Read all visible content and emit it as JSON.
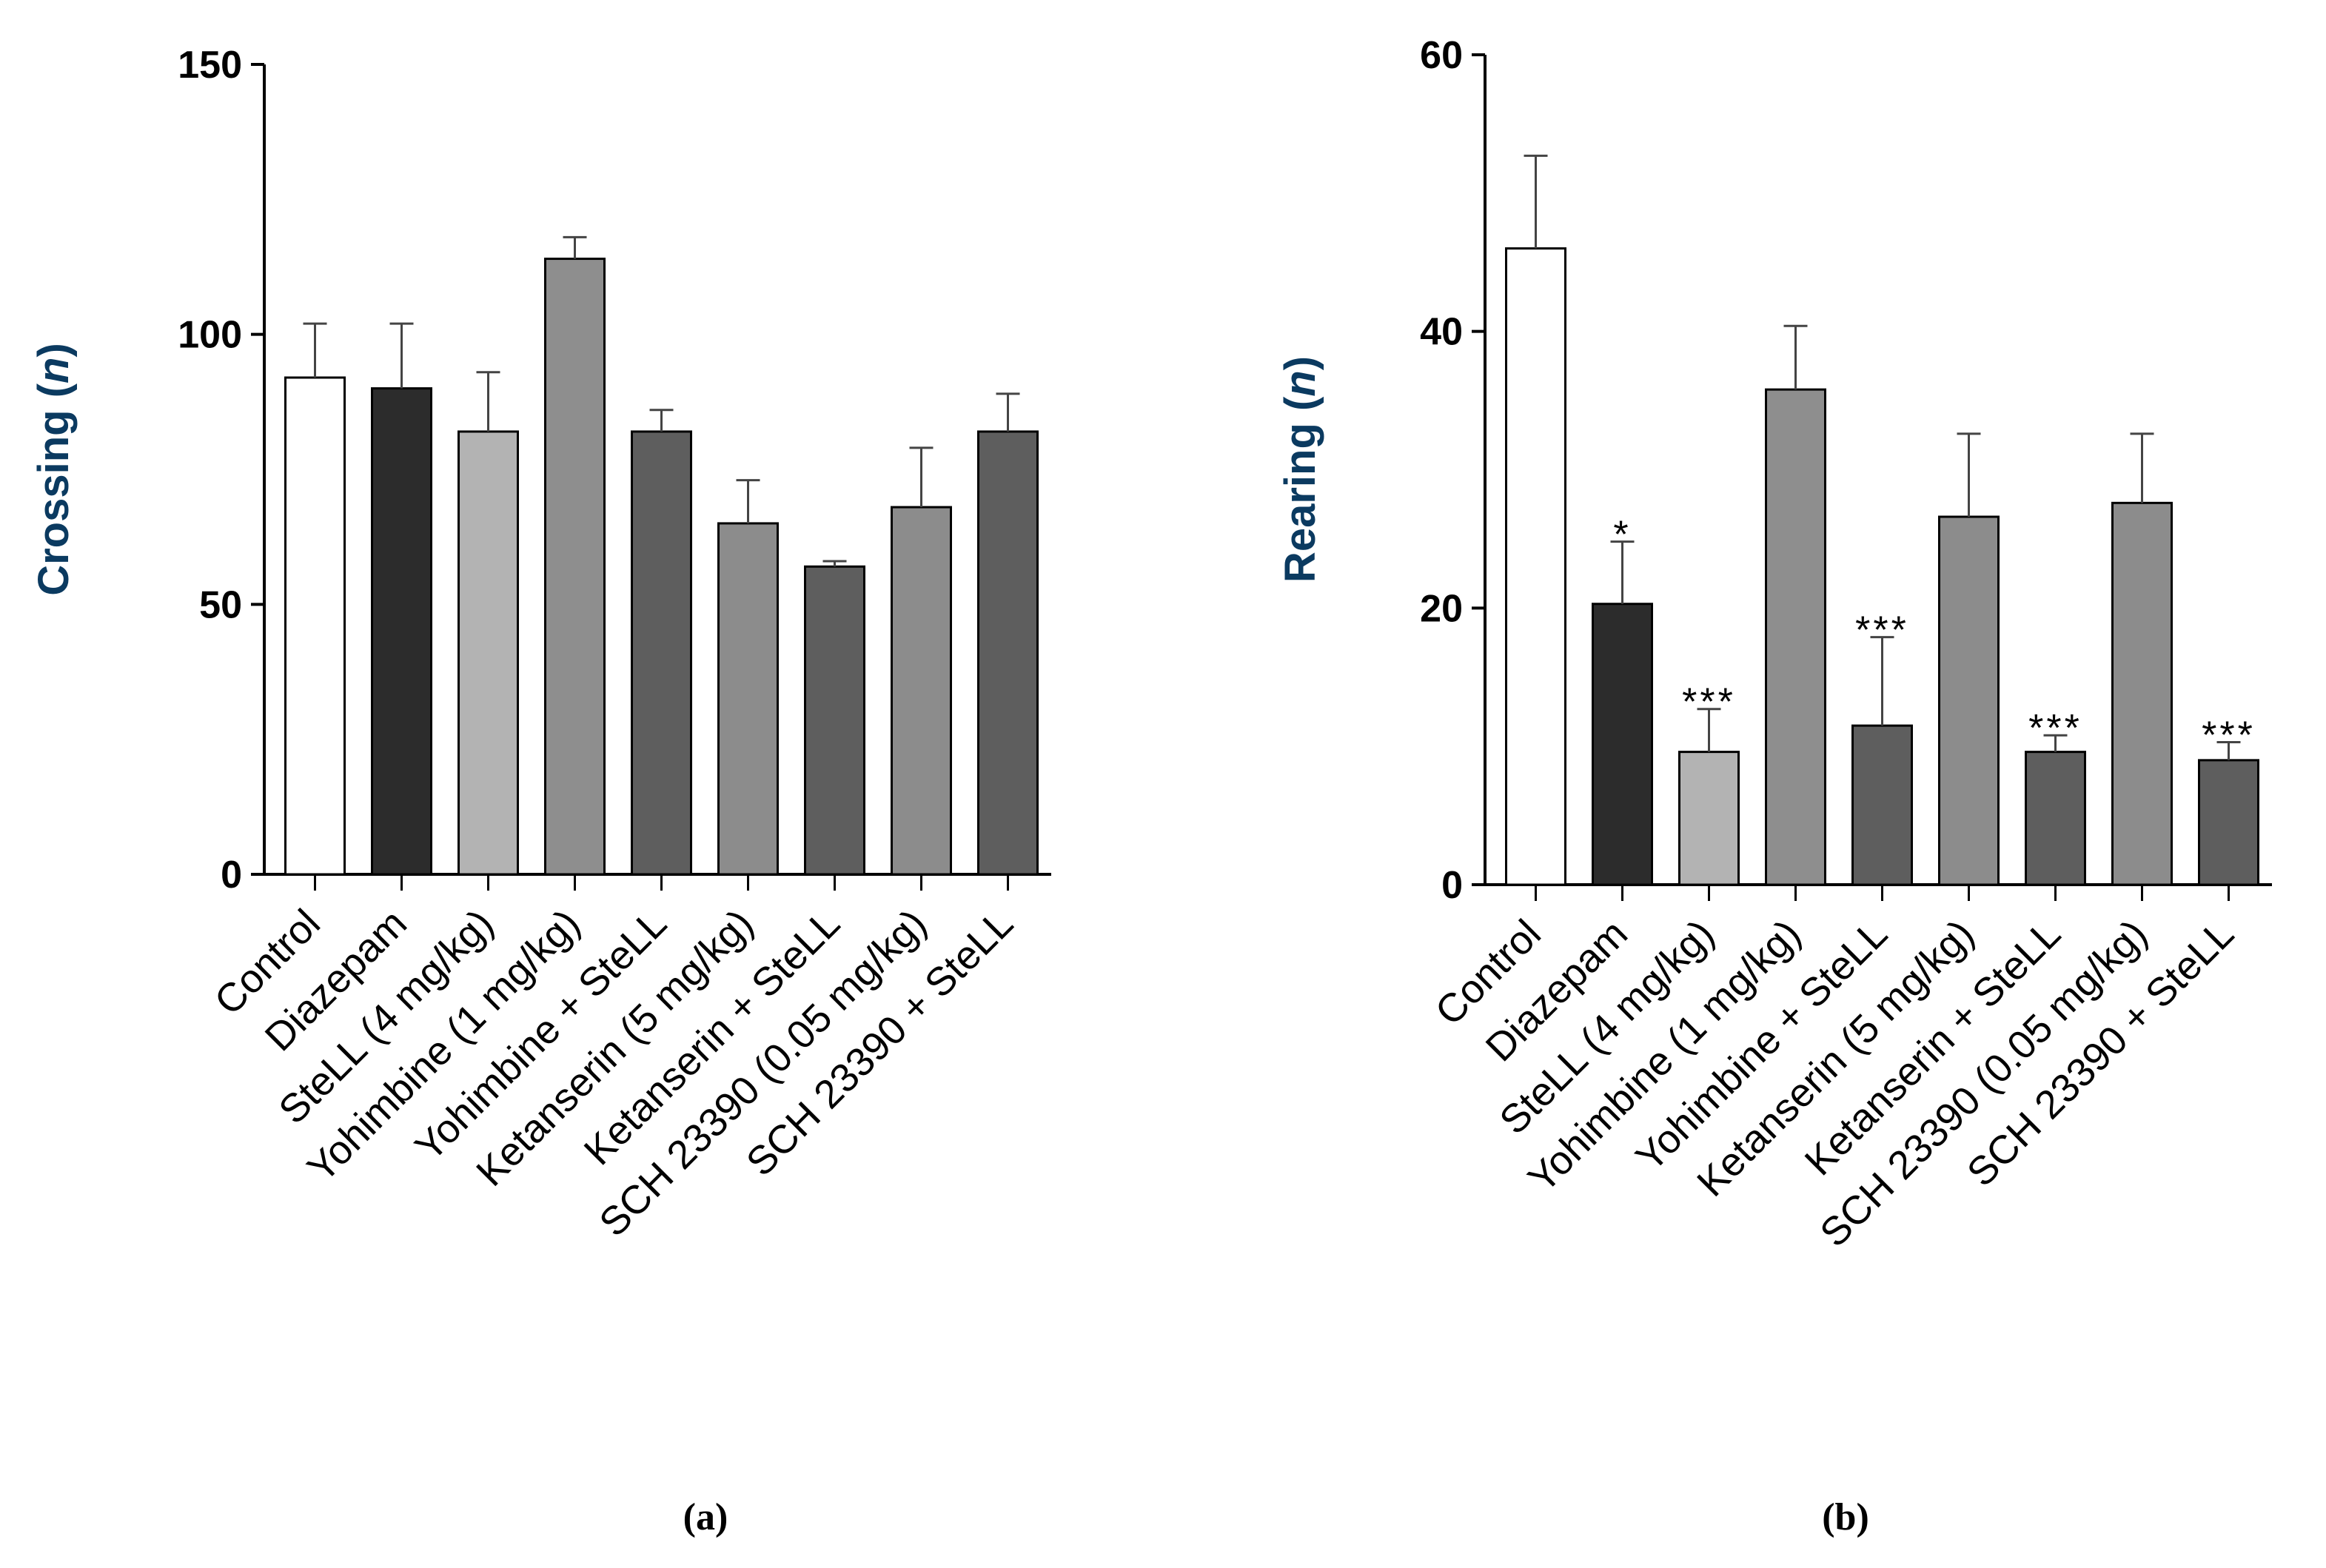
{
  "categories": [
    "Control",
    "Diazepam",
    "SteLL (4 mg/kg)",
    "Yohimbine (1 mg/kg)",
    "Yohimbine + SteLL",
    "Ketanserin (5 mg/kg)",
    "Ketanserin + SteLL",
    "SCH 23390 (0.05 mg/kg)",
    "SCH 23390 + SteLL"
  ],
  "bar_colors": [
    "#ffffff",
    "#2c2c2c",
    "#b3b3b3",
    "#8e8e8e",
    "#5e5e5e",
    "#8c8c8c",
    "#5e5e5e",
    "#8c8c8c",
    "#5e5e5e"
  ],
  "ylabel_color": "#0b3a60",
  "chart_data": [
    {
      "type": "bar",
      "panel_label": "(a)",
      "categories": [
        "Control",
        "Diazepam",
        "SteLL (4 mg/kg)",
        "Yohimbine (1 mg/kg)",
        "Yohimbine + SteLL",
        "Ketanserin (5 mg/kg)",
        "Ketanserin + SteLL",
        "SCH 23390 (0.05 mg/kg)",
        "SCH 23390 + SteLL"
      ],
      "values": [
        92,
        90,
        82,
        114,
        82,
        65,
        57,
        68,
        82
      ],
      "errors": [
        10,
        12,
        11,
        4,
        4,
        8,
        1,
        11,
        7
      ],
      "significance": [
        "",
        "",
        "",
        "",
        "",
        "",
        "",
        "",
        ""
      ],
      "ylabel_main": "Crossing (",
      "ylabel_italic": "n",
      "ylabel_end": ")",
      "ylim": [
        0,
        150
      ],
      "yticks": [
        0,
        50,
        100,
        150
      ],
      "ytick_labels": [
        "0",
        "50",
        "100",
        "150"
      ],
      "xlabel": "",
      "title": ""
    },
    {
      "type": "bar",
      "panel_label": "(b)",
      "categories": [
        "Control",
        "Diazepam",
        "SteLL (4 mg/kg)",
        "Yohimbine (1 mg/kg)",
        "Yohimbine + SteLL",
        "Ketanserin (5 mg/kg)",
        "Ketanserin + SteLL",
        "SCH 23390 (0.05 mg/kg)",
        "SCH 23390 + SteLL"
      ],
      "values": [
        46,
        20.3,
        9.6,
        35.8,
        11.5,
        26.6,
        9.6,
        27.6,
        9.0
      ],
      "errors": [
        6.7,
        4.5,
        3.1,
        4.6,
        6.4,
        6.0,
        1.2,
        5.0,
        1.3
      ],
      "significance": [
        "",
        "*",
        "***",
        "",
        "***",
        "",
        "***",
        "",
        "***"
      ],
      "ylabel_main": "Rearing (",
      "ylabel_italic": "n",
      "ylabel_end": ")",
      "ylim": [
        0,
        60
      ],
      "yticks": [
        0,
        20,
        40,
        60
      ],
      "ytick_labels": [
        "0",
        "20",
        "40",
        "60"
      ],
      "xlabel": "",
      "title": ""
    }
  ]
}
